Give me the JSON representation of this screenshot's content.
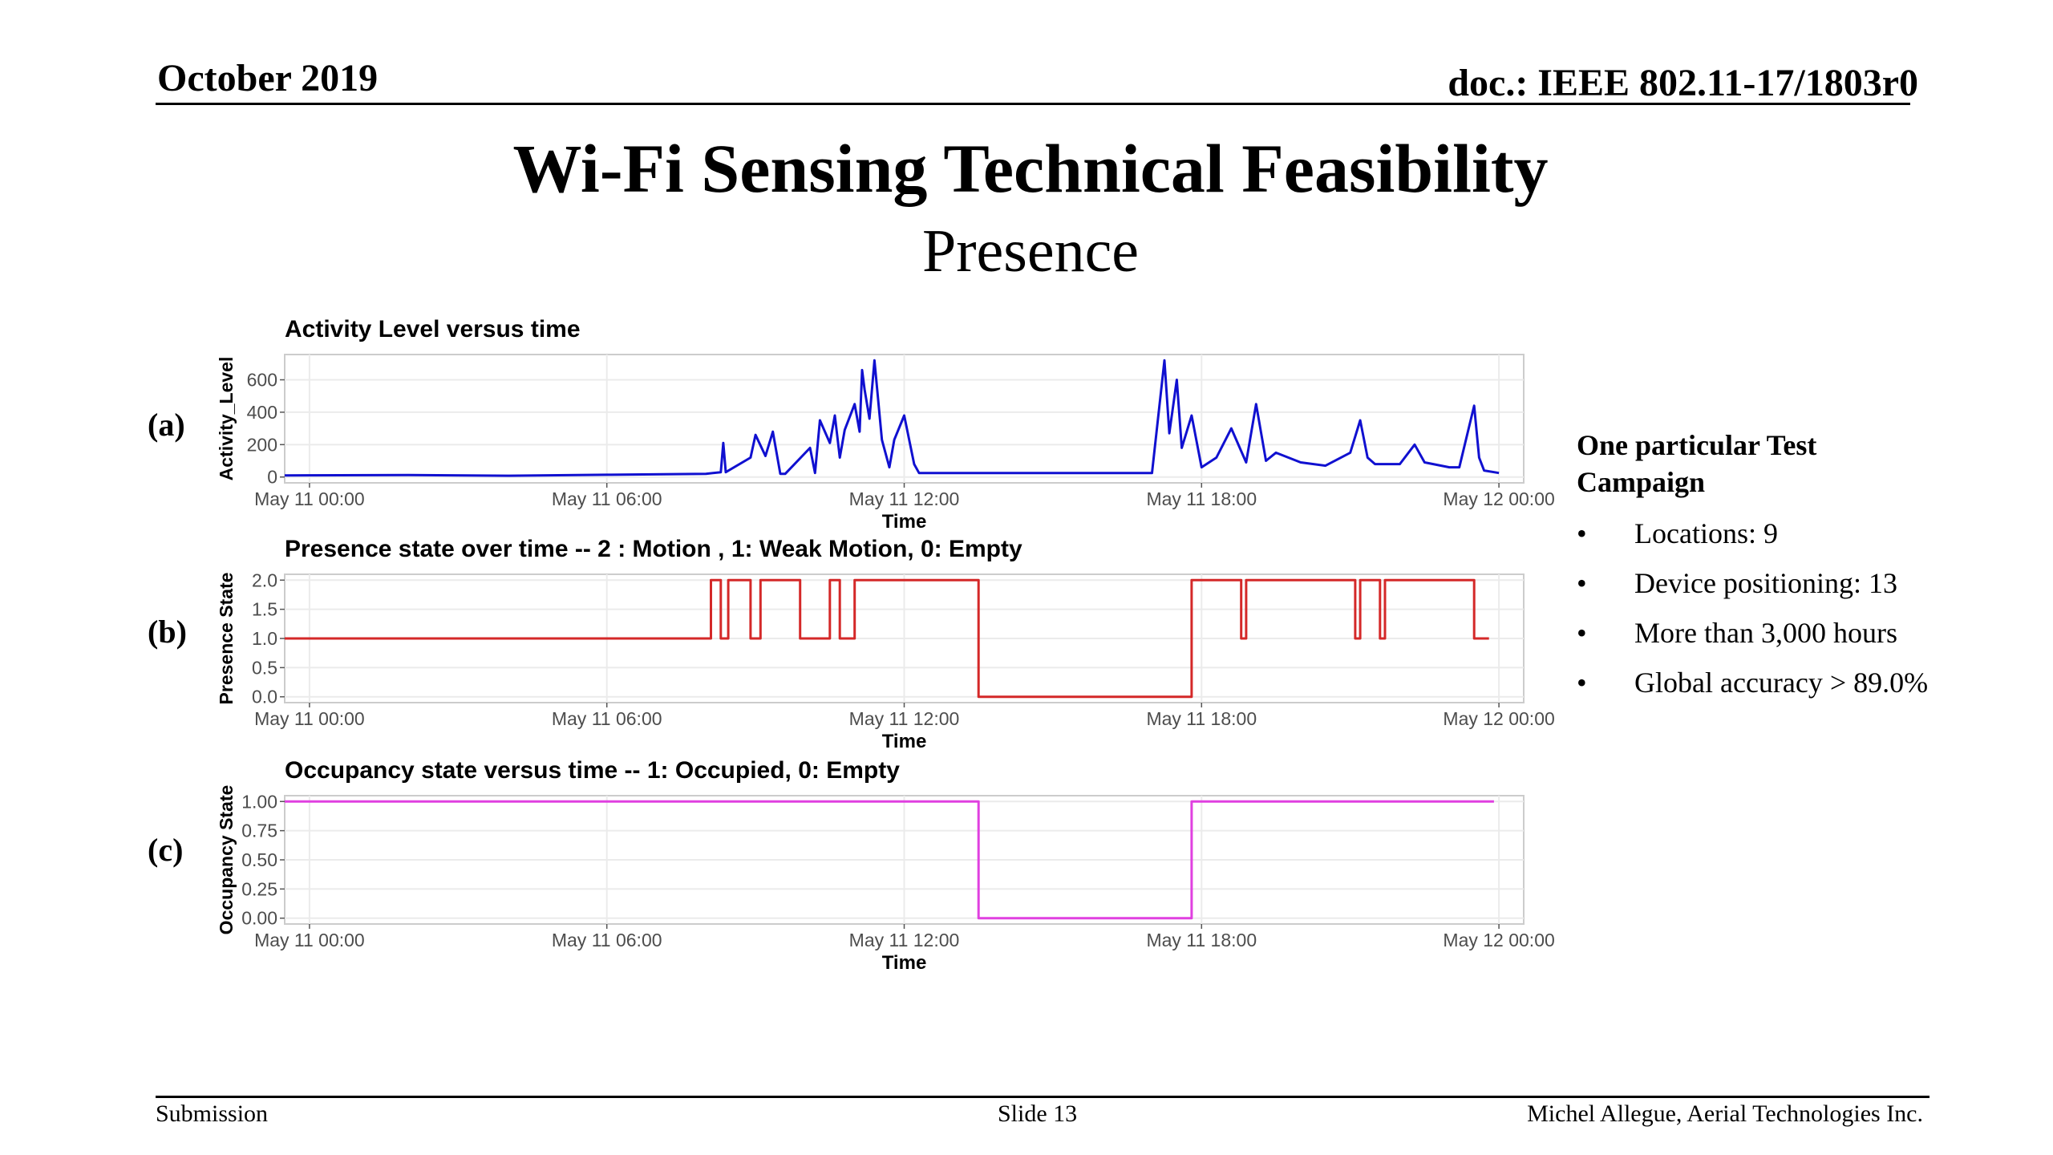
{
  "header": {
    "date": "October 2019",
    "doc": "doc.: IEEE 802.11-17/1803r0"
  },
  "title": "Wi-Fi Sensing Technical Feasibility",
  "subtitle": "Presence",
  "panel_labels": [
    "(a)",
    "(b)",
    "(c)"
  ],
  "campaign": {
    "title_line1": "One particular Test",
    "title_line2": "Campaign",
    "bullets": [
      "Locations: 9",
      "Device positioning: 13",
      "More than 3,000 hours",
      "Global accuracy > 89.0%"
    ]
  },
  "footer": {
    "left": "Submission",
    "center": "Slide 13",
    "right": "Michel Allegue, Aerial Technologies Inc."
  },
  "colors": {
    "activity_line": "#1010d0",
    "presence_line": "#d42828",
    "occupancy_line": "#e040e0",
    "grid": "#ebebeb",
    "panel_border": "#cccccc"
  },
  "chart_data": [
    {
      "type": "line",
      "title": "Activity Level versus time",
      "xlabel": "Time",
      "ylabel": "Activity_Level",
      "x_ticks": [
        "May 11 00:00",
        "May 11 06:00",
        "May 11 12:00",
        "May 11 18:00",
        "May 12 00:00"
      ],
      "x_range_hours": [
        -0.5,
        24.5
      ],
      "ylim": [
        0,
        720
      ],
      "y_ticks": [
        0,
        200,
        400,
        600
      ],
      "x_hours": [
        -0.5,
        2,
        4,
        6,
        8,
        8.3,
        8.35,
        8.4,
        8.9,
        9.0,
        9.2,
        9.35,
        9.5,
        9.6,
        10.1,
        10.2,
        10.3,
        10.5,
        10.6,
        10.7,
        10.8,
        11.0,
        11.1,
        11.15,
        11.2,
        11.3,
        11.4,
        11.55,
        11.7,
        11.8,
        12.0,
        12.2,
        12.3,
        13.0,
        15,
        17.0,
        17.25,
        17.35,
        17.5,
        17.6,
        17.8,
        18.0,
        18.3,
        18.6,
        18.8,
        18.9,
        19.1,
        19.3,
        19.5,
        20.0,
        20.5,
        21.0,
        21.2,
        21.35,
        21.5,
        22.0,
        22.3,
        22.5,
        23.0,
        23.2,
        23.5,
        23.6,
        23.7,
        24.0
      ],
      "series": [
        {
          "values": [
            10,
            12,
            8,
            14,
            20,
            30,
            210,
            30,
            120,
            260,
            130,
            280,
            20,
            20,
            180,
            25,
            350,
            210,
            380,
            120,
            290,
            450,
            280,
            660,
            540,
            360,
            720,
            230,
            60,
            230,
            380,
            80,
            25,
            25,
            25,
            25,
            720,
            270,
            600,
            180,
            380,
            60,
            120,
            300,
            160,
            90,
            450,
            100,
            150,
            90,
            70,
            150,
            350,
            120,
            80,
            80,
            200,
            90,
            60,
            60,
            440,
            120,
            40,
            25
          ]
        }
      ]
    },
    {
      "type": "line",
      "title": "Presence state over time -- 2 : Motion , 1: Weak Motion, 0: Empty",
      "xlabel": "Time",
      "ylabel": "Presence State",
      "x_ticks": [
        "May 11 00:00",
        "May 11 06:00",
        "May 11 12:00",
        "May 11 18:00",
        "May 12 00:00"
      ],
      "x_range_hours": [
        -0.5,
        24.5
      ],
      "ylim": [
        0,
        2
      ],
      "y_ticks": [
        "0.0",
        "0.5",
        "1.0",
        "1.5",
        "2.0"
      ],
      "x_hours": [
        -0.5,
        8.1,
        8.1,
        8.3,
        8.3,
        8.45,
        8.45,
        8.9,
        8.9,
        9.1,
        9.1,
        9.9,
        9.9,
        10.5,
        10.5,
        10.7,
        10.7,
        11.0,
        11.0,
        13.5,
        13.5,
        17.8,
        17.8,
        18.8,
        18.8,
        18.9,
        18.9,
        21.1,
        21.1,
        21.2,
        21.2,
        21.6,
        21.6,
        21.7,
        21.7,
        23.5,
        23.5,
        23.8
      ],
      "series": [
        {
          "values": [
            1,
            1,
            2,
            2,
            1,
            1,
            2,
            2,
            1,
            1,
            2,
            2,
            1,
            1,
            2,
            2,
            1,
            1,
            2,
            2,
            0,
            0,
            2,
            2,
            1,
            1,
            2,
            2,
            1,
            1,
            2,
            2,
            1,
            1,
            2,
            2,
            1,
            1
          ]
        }
      ]
    },
    {
      "type": "line",
      "title": "Occupancy state versus time -- 1: Occupied, 0: Empty",
      "xlabel": "Time",
      "ylabel": "Occupancy State",
      "x_ticks": [
        "May 11 00:00",
        "May 11 06:00",
        "May 11 12:00",
        "May 11 18:00",
        "May 12 00:00"
      ],
      "x_range_hours": [
        -0.5,
        24.5
      ],
      "ylim": [
        0,
        1
      ],
      "y_ticks": [
        "0.00",
        "0.25",
        "0.50",
        "0.75",
        "1.00"
      ],
      "x_hours": [
        -0.5,
        13.5,
        13.5,
        17.8,
        17.8,
        23.9
      ],
      "series": [
        {
          "values": [
            1,
            1,
            0,
            0,
            1,
            1
          ]
        }
      ]
    }
  ]
}
